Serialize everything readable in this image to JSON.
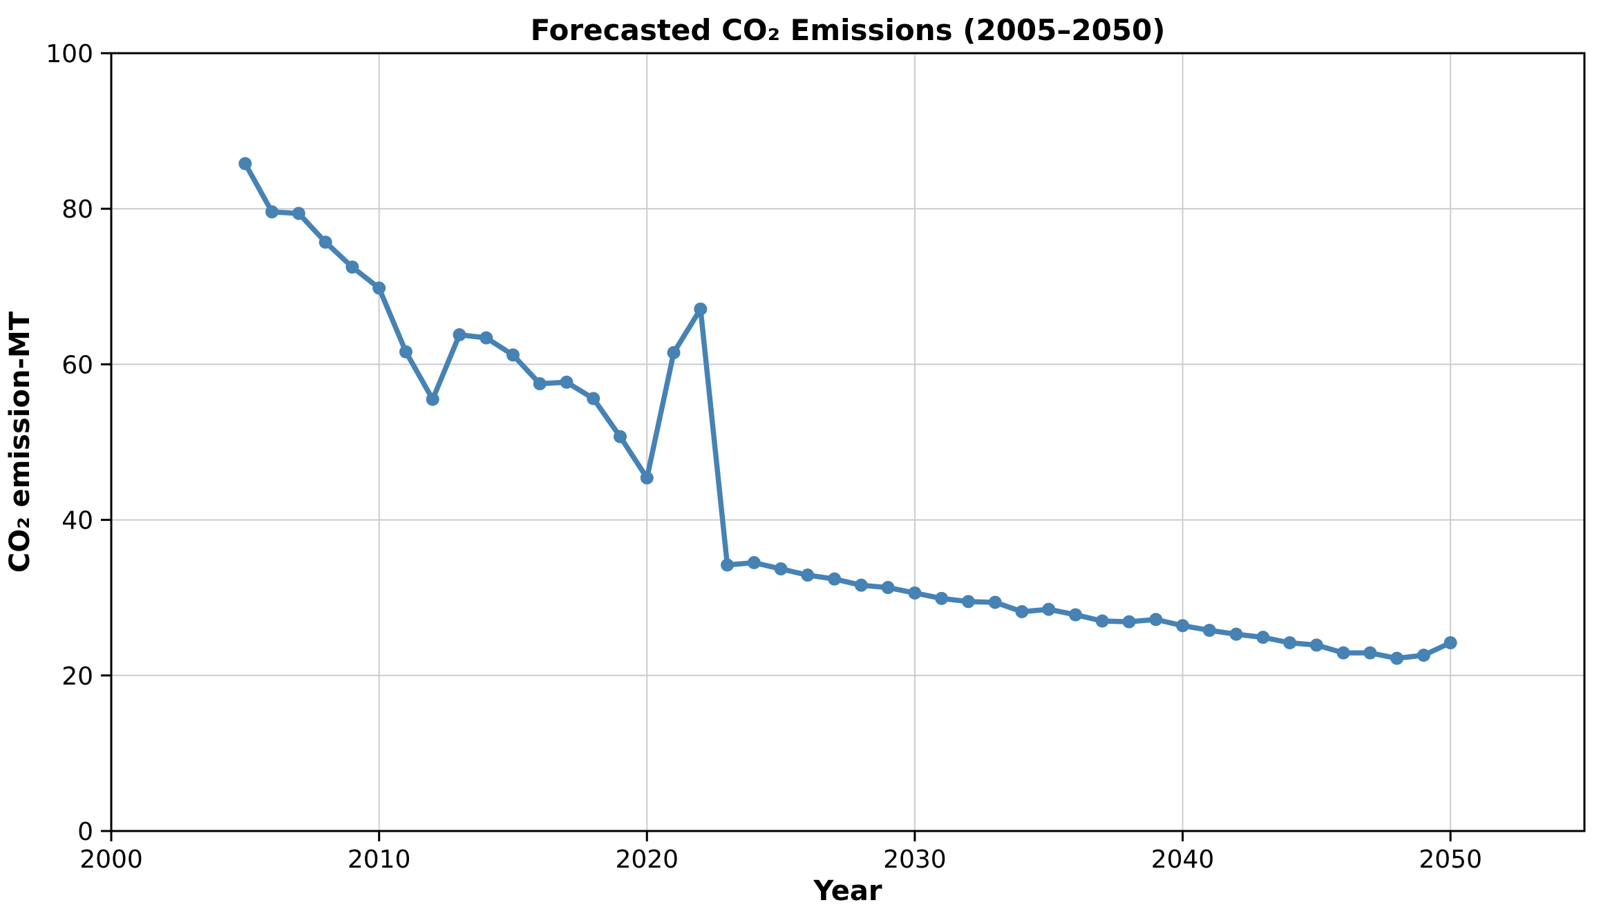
{
  "chart_data": {
    "type": "line",
    "title": "Forecasted CO₂ Emissions (2005–2050)",
    "xlabel": "Year",
    "ylabel": "CO₂ emission-MT",
    "series": [
      {
        "name": "forecasted-co2-emissions",
        "x": [
          2005,
          2006,
          2007,
          2008,
          2009,
          2010,
          2011,
          2012,
          2013,
          2014,
          2015,
          2016,
          2017,
          2018,
          2019,
          2020,
          2021,
          2022,
          2023,
          2024,
          2025,
          2026,
          2027,
          2028,
          2029,
          2030,
          2031,
          2032,
          2033,
          2034,
          2035,
          2036,
          2037,
          2038,
          2039,
          2040,
          2041,
          2042,
          2043,
          2044,
          2045,
          2046,
          2047,
          2048,
          2049,
          2050
        ],
        "y": [
          85.8,
          79.6,
          79.4,
          75.7,
          72.5,
          69.8,
          61.6,
          55.5,
          63.8,
          63.4,
          61.2,
          57.5,
          57.7,
          55.6,
          50.7,
          45.4,
          61.5,
          67.1,
          34.2,
          34.5,
          33.7,
          32.9,
          32.4,
          31.6,
          31.3,
          30.6,
          29.9,
          29.5,
          29.4,
          28.2,
          28.5,
          27.8,
          27.0,
          26.9,
          27.2,
          26.4,
          25.8,
          25.3,
          24.9,
          24.2,
          23.9,
          22.9,
          22.9,
          22.2,
          22.6,
          24.2
        ]
      }
    ],
    "xlim": [
      2000,
      2055
    ],
    "ylim": [
      0,
      100
    ],
    "x_ticks": [
      2000,
      2010,
      2020,
      2030,
      2040,
      2050
    ],
    "y_ticks": [
      0,
      20,
      40,
      60,
      80,
      100
    ],
    "grid": true,
    "legend": "none",
    "line_color": "#4682B4",
    "marker": "circle",
    "grid_color": "#cccccc",
    "spine_color": "#000000",
    "background_color": "#ffffff",
    "text_color": "#000000"
  }
}
